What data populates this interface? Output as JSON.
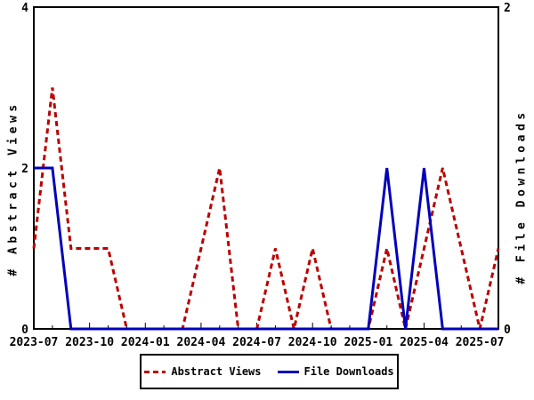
{
  "chart_data": {
    "type": "line",
    "title": "",
    "x": [
      "2023-07",
      "2023-08",
      "2023-09",
      "2023-10",
      "2023-11",
      "2023-12",
      "2024-01",
      "2024-02",
      "2024-03",
      "2024-04",
      "2024-05",
      "2024-06",
      "2024-07",
      "2024-08",
      "2024-09",
      "2024-10",
      "2024-11",
      "2024-12",
      "2025-01",
      "2025-02",
      "2025-03",
      "2025-04",
      "2025-05",
      "2025-06",
      "2025-07",
      "2025-08"
    ],
    "x_major_ticks": [
      "2023-07",
      "2023-10",
      "2024-01",
      "2024-04",
      "2024-07",
      "2024-10",
      "2025-01",
      "2025-04",
      "2025-07"
    ],
    "series": [
      {
        "name": "Abstract Views",
        "axis": "left",
        "color": "#bb0000",
        "line_style": "dashed",
        "values": [
          1,
          3,
          1,
          1,
          1,
          0,
          0,
          0,
          0,
          1,
          2,
          0,
          0,
          1,
          0,
          1,
          0,
          0,
          0,
          1,
          0,
          1,
          2,
          1,
          0,
          1
        ]
      },
      {
        "name": "File Downloads",
        "axis": "right",
        "color": "#0000bb",
        "line_style": "solid",
        "values": [
          1,
          1,
          0,
          0,
          0,
          0,
          0,
          0,
          0,
          0,
          0,
          0,
          0,
          0,
          0,
          0,
          0,
          0,
          0,
          1,
          0,
          1,
          0,
          0,
          0,
          0
        ]
      }
    ],
    "ylabel_left": "# Abstract Views",
    "ylabel_right": "# File Downloads",
    "ylim_left": [
      0,
      4
    ],
    "ylim_right": [
      0,
      2
    ],
    "yticks_left": [
      0,
      2,
      4
    ],
    "yticks_right": [
      0,
      2
    ],
    "grid": false,
    "legend_position": "bottom-center",
    "background_color": "#ffffff",
    "border_color": "#000000"
  }
}
